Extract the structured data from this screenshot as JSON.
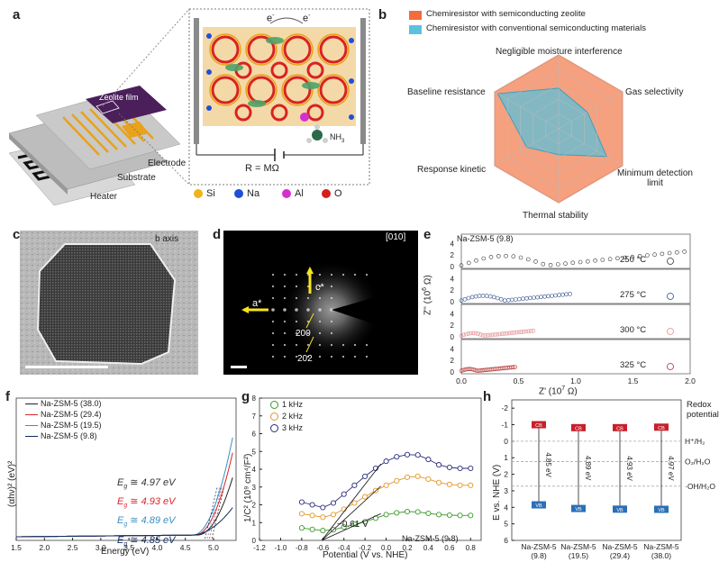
{
  "panels": {
    "a": "a",
    "b": "b",
    "c": "c",
    "d": "d",
    "e": "e",
    "f": "f",
    "g": "g",
    "h": "h"
  },
  "panel_a": {
    "labels": {
      "zeolite_film": "Zeolite film",
      "electrode": "Electrode",
      "substrate": "Substrate",
      "heater": "Heater",
      "e1": "e",
      "e2": "e",
      "e_sup": "-",
      "nh3": "NH",
      "nh3_sub": "3",
      "resistance": "R = MΩ"
    },
    "legend": [
      {
        "label": "Si",
        "color": "#f2b21b"
      },
      {
        "label": "Na",
        "color": "#1f4fd8"
      },
      {
        "label": "Al",
        "color": "#d62fd0"
      },
      {
        "label": "O",
        "color": "#d41f1f"
      }
    ]
  },
  "panel_b": {
    "legend": [
      {
        "label": "Chemiresistor with semiconducting zeolite",
        "color": "#f26c3d"
      },
      {
        "label": "Chemiresistor with conventional semiconducting materials",
        "color": "#5bc1e0"
      }
    ],
    "axes": [
      "Negligible moisture interference",
      "Gas selectivity",
      "Minimum detection limit",
      "Thermal stability",
      "Response kinetic",
      "Baseline resistance"
    ]
  },
  "panel_c": {
    "label": "b axis"
  },
  "panel_d": {
    "zone": "[010]",
    "a_star": "a*",
    "c_star": "c*",
    "spot200": "200",
    "spot202": "202"
  },
  "panel_e": {
    "title": "Na-ZSM-5 (9.8)",
    "temps": [
      "250 °C",
      "275 °C",
      "300 °C",
      "325 °C"
    ],
    "temp_colors": [
      "#333333",
      "#2a4a8a",
      "#e08a8a",
      "#b22a2a"
    ],
    "ylabel": "Z'' (10",
    "ylabel_sup": "6",
    "ylabel_unit": " Ω)",
    "xlabel": "Z' (10",
    "xlabel_sup": "7",
    "xlabel_unit": " Ω)",
    "xticks": [
      "0.0",
      "0.5",
      "1.0",
      "1.5",
      "2.0"
    ],
    "yticks": [
      "4",
      "2",
      "0"
    ]
  },
  "panel_f": {
    "legend": [
      {
        "label": "Na-ZSM-5 (38.0)",
        "color": "#222222"
      },
      {
        "label": "Na-ZSM-5 (29.4)",
        "color": "#d9262a"
      },
      {
        "label": "Na-ZSM-5 (19.5)",
        "color": "#3c8fc4"
      },
      {
        "label": "Na-ZSM-5 (9.8)",
        "color": "#0f2a5c"
      }
    ],
    "eg": [
      {
        "text": "≅ 4.97 eV",
        "color": "#333333"
      },
      {
        "text": "≅ 4.93 eV",
        "color": "#d9262a"
      },
      {
        "text": "≅ 4.89 eV",
        "color": "#3c8fc4"
      },
      {
        "text": "≅ 4.85 eV",
        "color": "#0f2a5c"
      }
    ],
    "eg_sym": "E",
    "eg_sub": "g",
    "xlabel": "Energy (eV)",
    "ylabel": "(αhν)² (eV)²",
    "xticks": [
      "1.5",
      "2.0",
      "2.5",
      "3.0",
      "3.5",
      "4.0",
      "4.5",
      "5.0"
    ]
  },
  "panel_g": {
    "legend": [
      {
        "label": "1 kHz",
        "color": "#3a9a2a"
      },
      {
        "label": "2 kHz",
        "color": "#e3962a"
      },
      {
        "label": "3 kHz",
        "color": "#2a2a7a"
      }
    ],
    "annotation": "−0.61 V",
    "sample": "Na-ZSM-5 (9.8)",
    "xlabel": "Potential (V vs. NHE)",
    "ylabel": "1/C² (10⁹ cm⁴/F²)",
    "xticks": [
      "-1.2",
      "-1.0",
      "-0.8",
      "-0.6",
      "-0.4",
      "-0.2",
      "0.0",
      "0.2",
      "0.4",
      "0.6",
      "0.8"
    ],
    "yticks": [
      "0",
      "1",
      "2",
      "3",
      "4",
      "5",
      "6",
      "7",
      "8"
    ]
  },
  "panel_h": {
    "ylabel": "E vs. NHE (V)",
    "yticks": [
      "-2",
      "-1",
      "0",
      "1",
      "2",
      "3",
      "4",
      "5",
      "6"
    ],
    "redox_title": "Redox potentials",
    "redox": [
      "H⁺/H₂",
      "O₂/H₂O",
      "·OH/H₂O"
    ],
    "cb": "CB",
    "vb": "VB",
    "samples": [
      {
        "name": "Na-ZSM-5",
        "ratio": "(9.8)",
        "gap": "4.85 eV"
      },
      {
        "name": "Na-ZSM-5",
        "ratio": "(19.5)",
        "gap": "4.89 eV"
      },
      {
        "name": "Na-ZSM-5",
        "ratio": "(29.4)",
        "gap": "4.93 eV"
      },
      {
        "name": "Na-ZSM-5",
        "ratio": "(38.0)",
        "gap": "4.97 eV"
      }
    ]
  },
  "chart_data": [
    {
      "type": "line",
      "xlabel": "Energy (eV)",
      "ylabel": "(αhν)² (eV)²",
      "xlim": [
        1.5,
        5.4
      ],
      "series": [
        {
          "name": "Na-ZSM-5 (38.0)",
          "onset": 4.97
        },
        {
          "name": "Na-ZSM-5 (29.4)",
          "onset": 4.93
        },
        {
          "name": "Na-ZSM-5 (19.5)",
          "onset": 4.89
        },
        {
          "name": "Na-ZSM-5 (9.8)",
          "onset": 4.85
        }
      ]
    },
    {
      "type": "scatter",
      "xlabel": "Potential (V vs. NHE)",
      "ylabel": "1/C² (10⁹ cm⁴/F²)",
      "xlim": [
        -1.2,
        0.9
      ],
      "ylim": [
        0,
        8
      ],
      "x": [
        -0.8,
        -0.7,
        -0.6,
        -0.5,
        -0.4,
        -0.3,
        -0.2,
        -0.1,
        0.0,
        0.1,
        0.2,
        0.3,
        0.4,
        0.5,
        0.6,
        0.7,
        0.8
      ],
      "series": [
        {
          "name": "1 kHz",
          "values": [
            0.7,
            0.62,
            0.55,
            0.6,
            0.75,
            0.9,
            1.05,
            1.25,
            1.45,
            1.55,
            1.62,
            1.6,
            1.52,
            1.45,
            1.42,
            1.4,
            1.4
          ]
        },
        {
          "name": "2 kHz",
          "values": [
            1.5,
            1.4,
            1.3,
            1.45,
            1.75,
            2.1,
            2.45,
            2.8,
            3.1,
            3.35,
            3.55,
            3.6,
            3.45,
            3.25,
            3.15,
            3.1,
            3.1
          ]
        },
        {
          "name": "3 kHz",
          "values": [
            2.15,
            2.0,
            1.85,
            2.1,
            2.6,
            3.1,
            3.6,
            4.05,
            4.45,
            4.7,
            4.82,
            4.8,
            4.55,
            4.25,
            4.1,
            4.05,
            4.05
          ]
        }
      ]
    },
    {
      "type": "bar",
      "ylabel": "E vs. NHE (V)",
      "ylim": [
        -2,
        6
      ],
      "categories": [
        "Na-ZSM-5 (9.8)",
        "Na-ZSM-5 (19.5)",
        "Na-ZSM-5 (29.4)",
        "Na-ZSM-5 (38.0)"
      ],
      "cb": [
        -1.0,
        -0.82,
        -0.82,
        -0.85
      ],
      "vb": [
        3.85,
        4.07,
        4.11,
        4.12
      ],
      "gap": [
        4.85,
        4.89,
        4.93,
        4.97
      ],
      "redox": [
        {
          "label": "H⁺/H₂",
          "value": 0
        },
        {
          "label": "O₂/H₂O",
          "value": 1.23
        },
        {
          "label": "·OH/H₂O",
          "value": 2.72
        }
      ]
    }
  ]
}
